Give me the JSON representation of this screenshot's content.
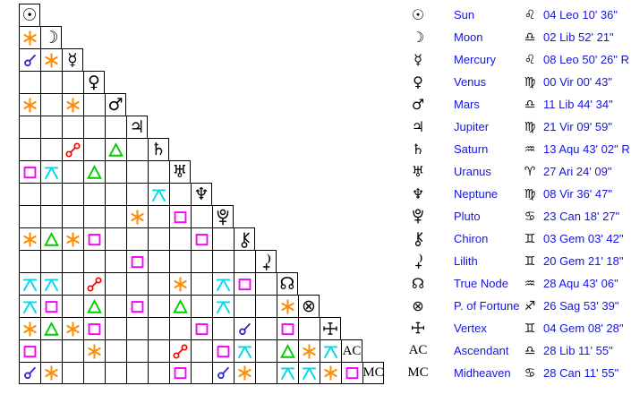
{
  "page": {
    "title": "Natal aspect grid and planetary positions"
  },
  "colors": {
    "background": "#ffffff",
    "grid_line": "#000000",
    "glyph_black": "#000000",
    "text_blue": "#1515e0",
    "aspects": {
      "conjunction": "#2a2ad0",
      "sextile": "#ff8c00",
      "square": "#ff00ff",
      "trine": "#00cc00",
      "opposition": "#ff0000",
      "quincunx": "#00d8ee"
    }
  },
  "glyphs": {
    "sun": {
      "char": "☉"
    },
    "moon": {
      "char": "☽"
    },
    "mercury": {
      "char": "☿"
    },
    "venus": {
      "char": "♀"
    },
    "mars": {
      "char": "♂"
    },
    "jupiter": {
      "char": "♃"
    },
    "saturn": {
      "char": "♄"
    },
    "uranus": {
      "char": "♅"
    },
    "neptune": {
      "char": "♆"
    },
    "pluto": {
      "svg": true
    },
    "chiron": {
      "svg": true
    },
    "lilith": {
      "svg": true
    },
    "true-node": {
      "char": "☊"
    },
    "fortune": {
      "char": "⊗"
    },
    "vertex": {
      "svg": true
    },
    "asc": {
      "text": "AC",
      "serif": true
    },
    "mc": {
      "text": "MC",
      "serif": true
    }
  },
  "zodiac": {
    "leo": "♌",
    "lib": "♎",
    "vir": "♍",
    "aqu": "♒",
    "ari": "♈",
    "can": "♋",
    "gem": "♊",
    "sag": "♐"
  },
  "grid": {
    "rows": [
      {
        "id": "sun",
        "glyph": "sun",
        "aspects": {}
      },
      {
        "id": "moon",
        "glyph": "moon",
        "aspects": {
          "1": "sextile"
        }
      },
      {
        "id": "mercury",
        "glyph": "mercury",
        "aspects": {
          "1": "conjunction",
          "2": "sextile"
        }
      },
      {
        "id": "venus",
        "glyph": "venus",
        "aspects": {}
      },
      {
        "id": "mars",
        "glyph": "mars",
        "aspects": {
          "1": "sextile",
          "3": "sextile"
        }
      },
      {
        "id": "jupiter",
        "glyph": "jupiter",
        "aspects": {}
      },
      {
        "id": "saturn",
        "glyph": "saturn",
        "aspects": {
          "3": "opposition",
          "5": "trine"
        }
      },
      {
        "id": "uranus",
        "glyph": "uranus",
        "aspects": {
          "1": "square",
          "2": "quincunx",
          "4": "trine"
        }
      },
      {
        "id": "neptune",
        "glyph": "neptune",
        "aspects": {
          "7": "quincunx"
        }
      },
      {
        "id": "pluto",
        "glyph": "pluto",
        "aspects": {
          "6": "sextile",
          "8": "square"
        }
      },
      {
        "id": "chiron",
        "glyph": "chiron",
        "aspects": {
          "1": "sextile",
          "2": "trine",
          "3": "sextile",
          "4": "square",
          "9": "square"
        }
      },
      {
        "id": "lilith",
        "glyph": "lilith",
        "aspects": {
          "6": "square"
        }
      },
      {
        "id": "true-node",
        "glyph": "true-node",
        "aspects": {
          "1": "quincunx",
          "2": "quincunx",
          "4": "opposition",
          "8": "sextile",
          "10": "quincunx",
          "11": "square"
        }
      },
      {
        "id": "fortune",
        "glyph": "fortune",
        "aspects": {
          "1": "quincunx",
          "2": "square",
          "4": "trine",
          "6": "square",
          "8": "trine",
          "10": "quincunx",
          "13": "sextile"
        }
      },
      {
        "id": "vertex",
        "glyph": "vertex",
        "aspects": {
          "1": "sextile",
          "2": "trine",
          "3": "sextile",
          "4": "square",
          "9": "square",
          "11": "conjunction",
          "13": "square"
        }
      },
      {
        "id": "asc",
        "glyph": "asc",
        "aspects": {
          "1": "square",
          "4": "sextile",
          "8": "opposition",
          "10": "square",
          "11": "quincunx",
          "13": "trine",
          "14": "sextile",
          "15": "quincunx"
        }
      },
      {
        "id": "mc",
        "glyph": "mc",
        "aspects": {
          "1": "conjunction",
          "2": "sextile",
          "8": "square",
          "10": "conjunction",
          "11": "sextile",
          "13": "quincunx",
          "14": "quincunx",
          "15": "sextile",
          "16": "square"
        }
      }
    ]
  },
  "positions": {
    "rows": [
      {
        "id": "sun",
        "glyph": "sun",
        "label": "Sun",
        "sign": "leo",
        "value": "04 Leo 10' 36\""
      },
      {
        "id": "moon",
        "glyph": "moon",
        "label": "Moon",
        "sign": "lib",
        "value": "02 Lib 52' 21\""
      },
      {
        "id": "mercury",
        "glyph": "mercury",
        "label": "Mercury",
        "sign": "leo",
        "value": "08 Leo 50' 26\" R"
      },
      {
        "id": "venus",
        "glyph": "venus",
        "label": "Venus",
        "sign": "vir",
        "value": "00 Vir 00' 43\""
      },
      {
        "id": "mars",
        "glyph": "mars",
        "label": "Mars",
        "sign": "lib",
        "value": "11 Lib 44' 34\""
      },
      {
        "id": "jupiter",
        "glyph": "jupiter",
        "label": "Jupiter",
        "sign": "vir",
        "value": "21 Vir 09' 59\""
      },
      {
        "id": "saturn",
        "glyph": "saturn",
        "label": "Saturn",
        "sign": "aqu",
        "value": "13 Aqu 43' 02\" R"
      },
      {
        "id": "uranus",
        "glyph": "uranus",
        "label": "Uranus",
        "sign": "ari",
        "value": "27 Ari 24' 09\""
      },
      {
        "id": "neptune",
        "glyph": "neptune",
        "label": "Neptune",
        "sign": "vir",
        "value": "08 Vir 36' 47\""
      },
      {
        "id": "pluto",
        "glyph": "pluto",
        "label": "Pluto",
        "sign": "can",
        "value": "23 Can 18' 27\""
      },
      {
        "id": "chiron",
        "glyph": "chiron",
        "label": "Chiron",
        "sign": "gem",
        "value": "03 Gem 03' 42\""
      },
      {
        "id": "lilith",
        "glyph": "lilith",
        "label": "Lilith",
        "sign": "gem",
        "value": "20 Gem 21' 18\""
      },
      {
        "id": "true-node",
        "glyph": "true-node",
        "label": "True Node",
        "sign": "aqu",
        "value": "28 Aqu 43' 06\""
      },
      {
        "id": "fortune",
        "glyph": "fortune",
        "label": "P. of Fortune",
        "sign": "sag",
        "value": "26 Sag 53' 39\""
      },
      {
        "id": "vertex",
        "glyph": "vertex",
        "label": "Vertex",
        "sign": "gem",
        "value": "04 Gem 08' 28\""
      },
      {
        "id": "asc",
        "glyph": "asc",
        "label": "Ascendant",
        "sign": "lib",
        "value": "28 Lib 11' 55\""
      },
      {
        "id": "mc",
        "glyph": "mc",
        "label": "Midheaven",
        "sign": "can",
        "value": "28 Can 11' 55\""
      }
    ]
  },
  "chart_data": {
    "type": "table",
    "title": "Natal planetary positions with triangular aspectarian",
    "positions": [
      {
        "body": "Sun",
        "longitude": "04 Leo 10' 36\"",
        "retrograde": false
      },
      {
        "body": "Moon",
        "longitude": "02 Lib 52' 21\"",
        "retrograde": false
      },
      {
        "body": "Mercury",
        "longitude": "08 Leo 50' 26\"",
        "retrograde": true
      },
      {
        "body": "Venus",
        "longitude": "00 Vir 00' 43\"",
        "retrograde": false
      },
      {
        "body": "Mars",
        "longitude": "11 Lib 44' 34\"",
        "retrograde": false
      },
      {
        "body": "Jupiter",
        "longitude": "21 Vir 09' 59\"",
        "retrograde": false
      },
      {
        "body": "Saturn",
        "longitude": "13 Aqu 43' 02\"",
        "retrograde": true
      },
      {
        "body": "Uranus",
        "longitude": "27 Ari 24' 09\"",
        "retrograde": false
      },
      {
        "body": "Neptune",
        "longitude": "08 Vir 36' 47\"",
        "retrograde": false
      },
      {
        "body": "Pluto",
        "longitude": "23 Can 18' 27\"",
        "retrograde": false
      },
      {
        "body": "Chiron",
        "longitude": "03 Gem 03' 42\"",
        "retrograde": false
      },
      {
        "body": "Lilith",
        "longitude": "20 Gem 21' 18\"",
        "retrograde": false
      },
      {
        "body": "True Node",
        "longitude": "28 Aqu 43' 06\"",
        "retrograde": false
      },
      {
        "body": "P. of Fortune",
        "longitude": "26 Sag 53' 39\"",
        "retrograde": false
      },
      {
        "body": "Vertex",
        "longitude": "04 Gem 08' 28\"",
        "retrograde": false
      },
      {
        "body": "Ascendant",
        "longitude": "28 Lib 11' 55\"",
        "retrograde": false
      },
      {
        "body": "Midheaven",
        "longitude": "28 Can 11' 55\"",
        "retrograde": false
      }
    ],
    "aspects": [
      "Moon sextile Sun",
      "Mercury conjunction Sun",
      "Mercury sextile Moon",
      "Mars sextile Sun",
      "Mars sextile Mercury",
      "Saturn opposition Mercury",
      "Saturn trine Mars",
      "Uranus square Sun",
      "Uranus quincunx Moon",
      "Uranus trine Venus",
      "Neptune quincunx Saturn",
      "Pluto sextile Jupiter",
      "Pluto square Uranus",
      "Chiron sextile Sun",
      "Chiron trine Moon",
      "Chiron sextile Mercury",
      "Chiron square Venus",
      "Chiron square Neptune",
      "Lilith square Jupiter",
      "True Node quincunx Sun",
      "True Node quincunx Moon",
      "True Node opposition Venus",
      "True Node sextile Uranus",
      "True Node quincunx Pluto",
      "True Node square Chiron",
      "P. of Fortune quincunx Sun",
      "P. of Fortune square Moon",
      "P. of Fortune trine Venus",
      "P. of Fortune square Jupiter",
      "P. of Fortune trine Uranus",
      "P. of Fortune quincunx Pluto",
      "P. of Fortune sextile True Node",
      "Vertex sextile Sun",
      "Vertex trine Moon",
      "Vertex sextile Mercury",
      "Vertex square Venus",
      "Vertex square Neptune",
      "Vertex conjunction Chiron",
      "Vertex square True Node",
      "Ascendant square Sun",
      "Ascendant sextile Venus",
      "Ascendant opposition Uranus",
      "Ascendant square Pluto",
      "Ascendant quincunx Chiron",
      "Ascendant trine True Node",
      "Ascendant sextile P. of Fortune",
      "Ascendant quincunx Vertex",
      "Midheaven conjunction Sun",
      "Midheaven sextile Moon",
      "Midheaven square Uranus",
      "Midheaven conjunction Pluto",
      "Midheaven sextile Chiron",
      "Midheaven quincunx True Node",
      "Midheaven quincunx P. of Fortune",
      "Midheaven sextile Vertex",
      "Midheaven square Ascendant"
    ]
  }
}
